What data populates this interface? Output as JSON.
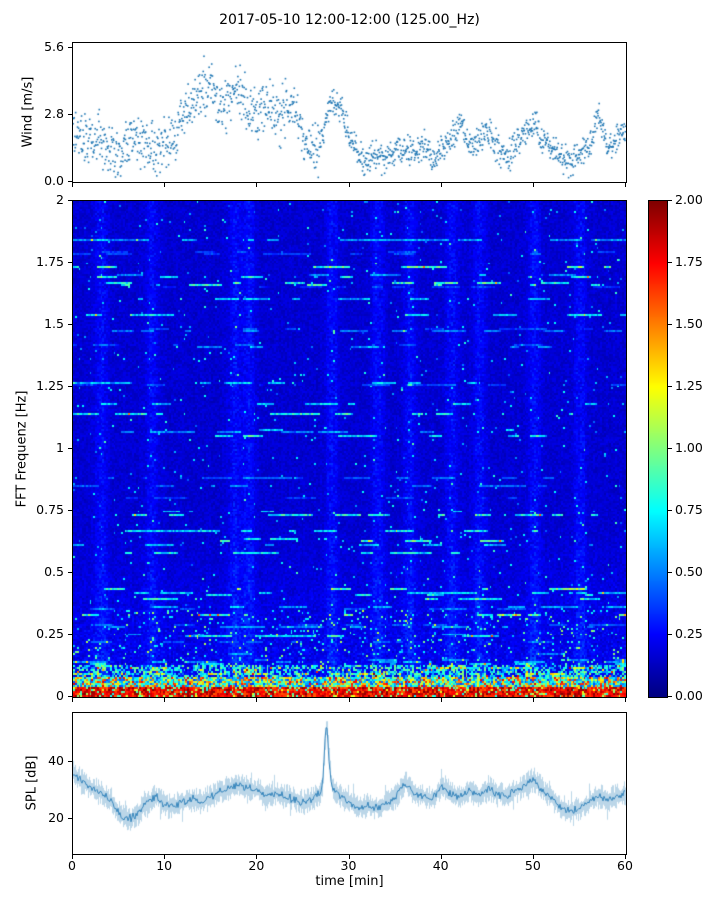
{
  "title": "2017-05-10 12:00-12:00 (125.00_Hz)",
  "colors": {
    "series": "#1f77b4",
    "background": "#ffffff",
    "axis": "#000000"
  },
  "xaxis": {
    "label": "time [min]",
    "ticks": [
      "0",
      "10",
      "20",
      "30",
      "40",
      "50",
      "60"
    ],
    "tick_values": [
      0,
      10,
      20,
      30,
      40,
      50,
      60
    ],
    "lim": [
      0,
      60
    ]
  },
  "chart_data": [
    {
      "type": "scatter",
      "name": "wind-speed",
      "ylabel": "Wind [m/s]",
      "yticks": [
        "0.0",
        "2.8",
        "5.6"
      ],
      "ytick_values": [
        0,
        2.8,
        5.6
      ],
      "ylim": [
        0,
        5.8
      ],
      "color": "#1f77b4",
      "trend_minutes": [
        0,
        1,
        2,
        3,
        4,
        5,
        6,
        7,
        8,
        9,
        10,
        11,
        12,
        13,
        14,
        15,
        16,
        17,
        18,
        19,
        20,
        21,
        22,
        23,
        24,
        25,
        26,
        27,
        28,
        29,
        30,
        31,
        32,
        33,
        34,
        35,
        36,
        37,
        38,
        39,
        40,
        41,
        42,
        43,
        44,
        45,
        46,
        47,
        48,
        49,
        50,
        51,
        52,
        53,
        54,
        55,
        56,
        57,
        58,
        59,
        60
      ],
      "trend": [
        2.5,
        1.8,
        1.6,
        2.0,
        1.5,
        1.3,
        1.5,
        1.8,
        1.5,
        1.3,
        1.5,
        2.0,
        2.6,
        3.4,
        3.9,
        3.9,
        3.0,
        3.5,
        4.1,
        3.0,
        2.8,
        3.2,
        2.6,
        3.0,
        3.4,
        2.1,
        1.2,
        1.6,
        3.4,
        3.1,
        1.9,
        1.0,
        0.9,
        1.2,
        1.0,
        1.3,
        1.5,
        1.2,
        1.5,
        1.0,
        1.3,
        1.8,
        2.4,
        1.5,
        1.8,
        2.2,
        1.5,
        1.0,
        1.5,
        2.0,
        2.4,
        1.8,
        1.5,
        1.0,
        0.8,
        1.2,
        1.5,
        2.9,
        1.5,
        1.8,
        2.0
      ],
      "noise": {
        "before_min": 27,
        "early": 0.55,
        "late": 0.3
      },
      "peak": {
        "t": 15,
        "value": 5.6
      }
    },
    {
      "type": "heatmap",
      "name": "fft-spectrogram",
      "ylabel": "FFT Frequenz [Hz]",
      "yticks": [
        "0",
        "0.25",
        "0.5",
        "0.75",
        "1",
        "1.25",
        "1.5",
        "1.75",
        "2"
      ],
      "ytick_values": [
        0,
        0.25,
        0.5,
        0.75,
        1,
        1.25,
        1.5,
        1.75,
        2
      ],
      "ylim": [
        0,
        2
      ],
      "colormap": "jet",
      "value_range": [
        0,
        2
      ],
      "colorbar_ticks": [
        "0.00",
        "0.25",
        "0.50",
        "0.75",
        "1.00",
        "1.25",
        "1.50",
        "1.75",
        "2.00"
      ],
      "colorbar_tick_values": [
        0,
        0.25,
        0.5,
        0.75,
        1,
        1.25,
        1.5,
        1.75,
        2
      ],
      "background_level": 0.15,
      "hot_bands": [
        {
          "freq_lt": 0.04,
          "level_range": [
            1.55,
            2.0
          ]
        },
        {
          "freq_lt": 0.08,
          "level_range": [
            0.9,
            1.8
          ]
        },
        {
          "freq_lt": 0.13,
          "level_range": [
            0.3,
            0.9
          ]
        }
      ],
      "bright_columns_min": [
        3,
        8.5,
        17.5,
        19,
        28,
        33,
        36.5,
        41,
        44,
        50,
        55
      ],
      "seed": 42
    },
    {
      "type": "line",
      "name": "spl",
      "ylabel": "SPL [dB]",
      "yticks": [
        "20",
        "40"
      ],
      "ytick_values": [
        20,
        40
      ],
      "ylim": [
        8,
        57
      ],
      "color": "#1f77b4",
      "trend_minutes": [
        0,
        1,
        2,
        3,
        4,
        5,
        6,
        7,
        8,
        9,
        10,
        11,
        12,
        13,
        14,
        15,
        16,
        17,
        18,
        19,
        20,
        21,
        22,
        23,
        24,
        25,
        26,
        27,
        28,
        29,
        30,
        31,
        32,
        33,
        34,
        35,
        36,
        37,
        38,
        39,
        40,
        41,
        42,
        43,
        44,
        45,
        46,
        47,
        48,
        49,
        50,
        51,
        52,
        53,
        54,
        55,
        56,
        57,
        58,
        59,
        60
      ],
      "trend": [
        36,
        33,
        31,
        29,
        27,
        22,
        20,
        22,
        26,
        28,
        25,
        25,
        26,
        27,
        26,
        28,
        30,
        31,
        32,
        31,
        30,
        28,
        29,
        28,
        27,
        26,
        27,
        30,
        32,
        28,
        26,
        24,
        25,
        24,
        26,
        28,
        33,
        29,
        28,
        27,
        32,
        29,
        28,
        30,
        28,
        31,
        29,
        28,
        30,
        32,
        34,
        30,
        27,
        24,
        23,
        24,
        26,
        28,
        27,
        28,
        29
      ],
      "spike": {
        "t": 27.5,
        "value": 52
      },
      "fuzz": 3
    }
  ]
}
